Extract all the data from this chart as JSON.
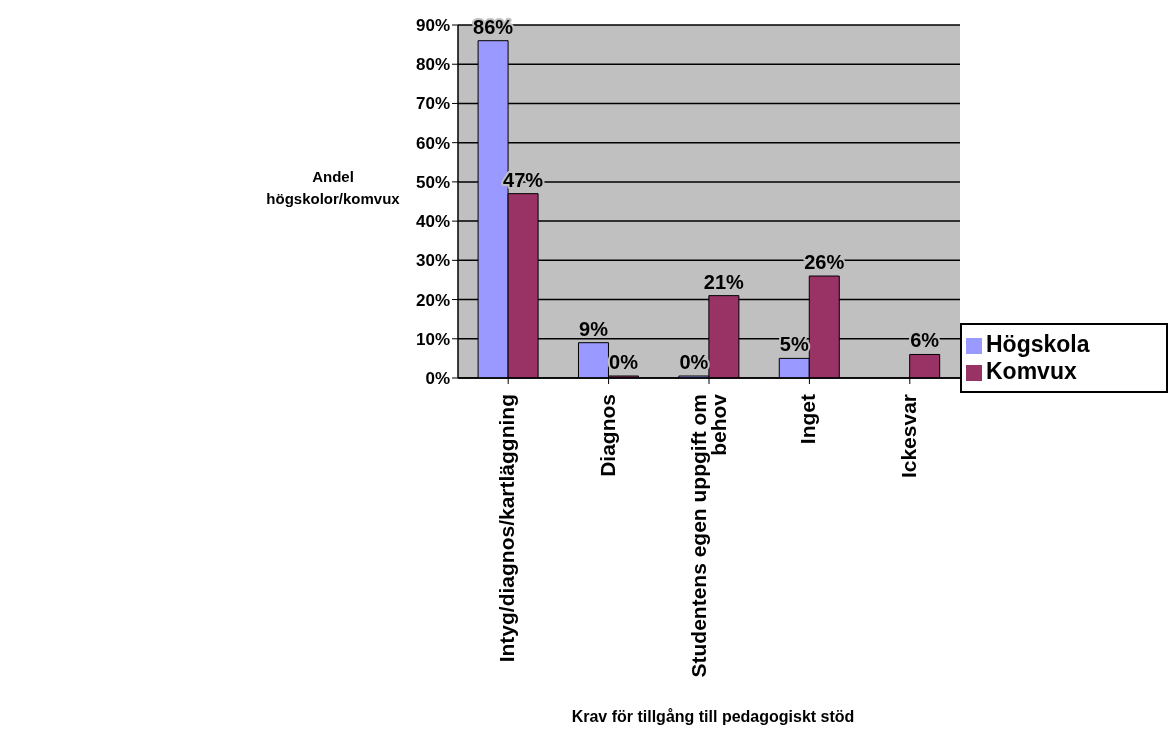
{
  "chart_data": {
    "type": "bar",
    "xlabel": "Krav för tillgång till pedagogiskt stöd",
    "ylabel": "Andel högskolor/komvux",
    "categories": [
      "Intyg/diagnos/kartläggning",
      "Diagnos",
      "Studentens egen uppgift om behov",
      "Inget",
      "Ickesvar"
    ],
    "series": [
      {
        "name": "Högskola",
        "color": "#9999ff",
        "values": [
          86,
          9,
          0,
          5,
          null
        ],
        "value_labels": [
          "86%",
          "9%",
          "0%",
          "5%",
          null
        ]
      },
      {
        "name": "Komvux",
        "color": "#993366",
        "values": [
          47,
          0,
          21,
          26,
          6
        ],
        "value_labels": [
          "47%",
          "0%",
          "21%",
          "26%",
          "6%"
        ]
      }
    ],
    "ylim": [
      0,
      90
    ],
    "yticks": [
      {
        "value": 0,
        "label": "0%"
      },
      {
        "value": 10,
        "label": "10%"
      },
      {
        "value": 20,
        "label": "20%"
      },
      {
        "value": 30,
        "label": "30%"
      },
      {
        "value": 40,
        "label": "40%"
      },
      {
        "value": 50,
        "label": "50%"
      },
      {
        "value": 60,
        "label": "60%"
      },
      {
        "value": 70,
        "label": "70%"
      },
      {
        "value": 80,
        "label": "80%"
      },
      {
        "value": 90,
        "label": "90%"
      }
    ],
    "grid": "y",
    "legend": "right"
  }
}
